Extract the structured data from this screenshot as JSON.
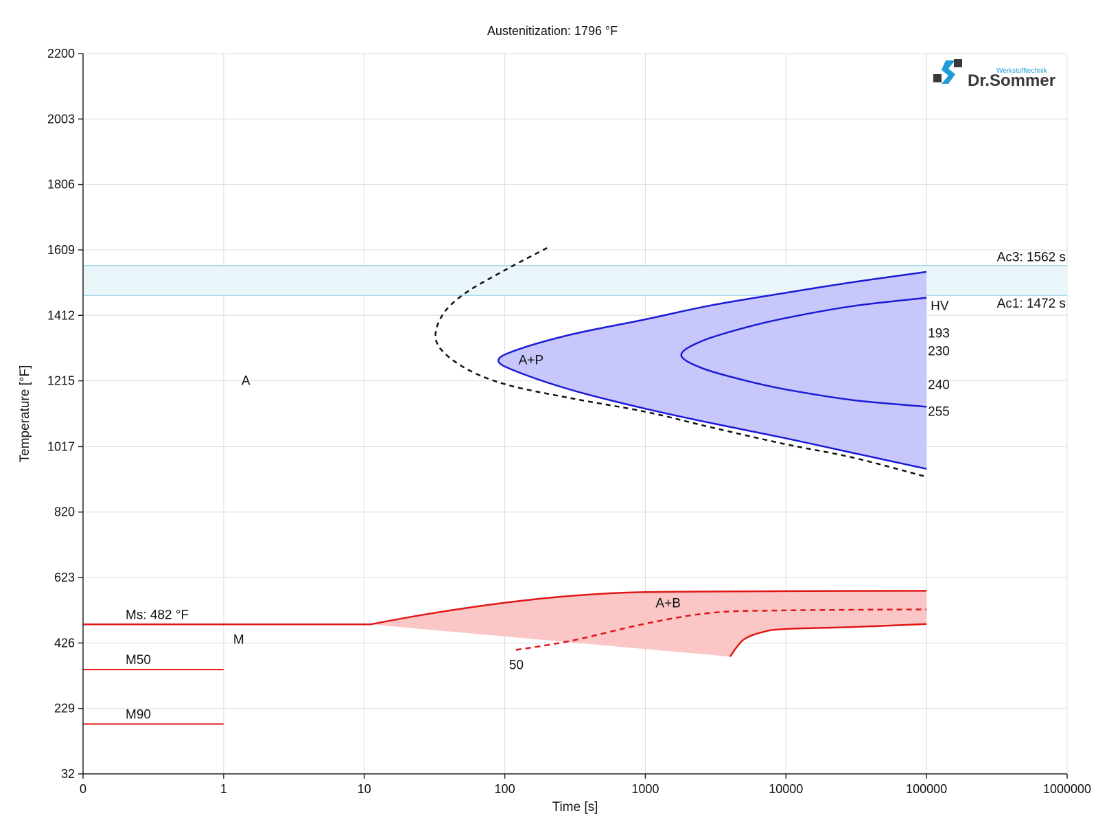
{
  "chart_data": {
    "type": "line",
    "title": "Austenitization: 1796 °F",
    "xlabel": "Time [s]",
    "ylabel": "Temperature [°F]",
    "x_scale": "log",
    "x_ticks": [
      "0",
      "1",
      "10",
      "100",
      "1000",
      "10000",
      "100000",
      "1000000"
    ],
    "y_ticks": [
      "32",
      "229",
      "426",
      "623",
      "820",
      "1017",
      "1215",
      "1412",
      "1609",
      "1806",
      "2003",
      "2200"
    ],
    "ylim": [
      32,
      2200
    ],
    "grid": true,
    "legend": "none",
    "ac_band": {
      "ac3_label": "Ac3: 1562 s",
      "ac1_label": "Ac1: 1472 s",
      "ac3": 1562,
      "ac1": 1472,
      "color": "#eaf6fa",
      "edge_color": "#a8d8e8"
    },
    "pearlite_region": {
      "label": "A+P",
      "fill": "#c7c7fb",
      "line_color": "#1a1ad6",
      "start_curve": [
        [
          100000,
          1543
        ],
        [
          30000,
          1512
        ],
        [
          10000,
          1480
        ],
        [
          3000,
          1443
        ],
        [
          1000,
          1400
        ],
        [
          300,
          1355
        ],
        [
          120,
          1307
        ],
        [
          90,
          1276
        ],
        [
          120,
          1244
        ],
        [
          300,
          1187
        ],
        [
          1000,
          1131
        ],
        [
          3000,
          1087
        ],
        [
          10000,
          1042
        ],
        [
          30000,
          998
        ],
        [
          100000,
          950
        ]
      ],
      "finish_curve": [
        [
          100000,
          1465
        ],
        [
          30000,
          1440
        ],
        [
          10000,
          1404
        ],
        [
          5000,
          1374
        ],
        [
          2500,
          1334
        ],
        [
          1800,
          1293
        ],
        [
          2500,
          1254
        ],
        [
          5000,
          1217
        ],
        [
          10000,
          1189
        ],
        [
          30000,
          1157
        ],
        [
          100000,
          1137
        ]
      ]
    },
    "pearlite_1pct_dashed": {
      "color": "#111111",
      "points": [
        [
          200,
          1615
        ],
        [
          100,
          1548
        ],
        [
          50,
          1473
        ],
        [
          35,
          1404
        ],
        [
          33,
          1328
        ],
        [
          50,
          1258
        ],
        [
          100,
          1205
        ],
        [
          300,
          1162
        ],
        [
          1000,
          1122
        ],
        [
          3000,
          1074
        ],
        [
          10000,
          1024
        ],
        [
          30000,
          984
        ],
        [
          100000,
          926
        ]
      ]
    },
    "bainite_region": {
      "label": "A+B",
      "fill": "#fbc6c6",
      "line_color": "#e01616",
      "start_curve": [
        [
          11,
          482
        ],
        [
          30,
          515
        ],
        [
          100,
          547
        ],
        [
          300,
          568
        ],
        [
          1000,
          579
        ],
        [
          10000,
          582
        ],
        [
          100000,
          583
        ]
      ],
      "finish_curve": [
        [
          4000,
          385
        ],
        [
          5000,
          436
        ],
        [
          7000,
          460
        ],
        [
          10000,
          468
        ],
        [
          30000,
          474
        ],
        [
          100000,
          483
        ]
      ],
      "fill_lower_edge": [
        [
          11,
          482
        ],
        [
          4000,
          385
        ]
      ],
      "fifty_pct_dashed": [
        [
          120,
          405
        ],
        [
          300,
          433
        ],
        [
          1000,
          484
        ],
        [
          3000,
          517
        ],
        [
          10000,
          524
        ],
        [
          100000,
          527
        ]
      ],
      "fifty_label": "50"
    },
    "martensite": {
      "ms_label": "Ms: 482 °F",
      "ms": 482,
      "m50_label": "M50",
      "m50": 346,
      "m90_label": "M90",
      "m90": 182,
      "region_label": "M"
    },
    "austenite_label": "A",
    "hardness": {
      "header": "HV",
      "values": [
        "193",
        "230",
        "240",
        "255"
      ]
    }
  },
  "logo": {
    "small_text": "Werkstofftechnik",
    "big_text": "Dr.Sommer"
  }
}
